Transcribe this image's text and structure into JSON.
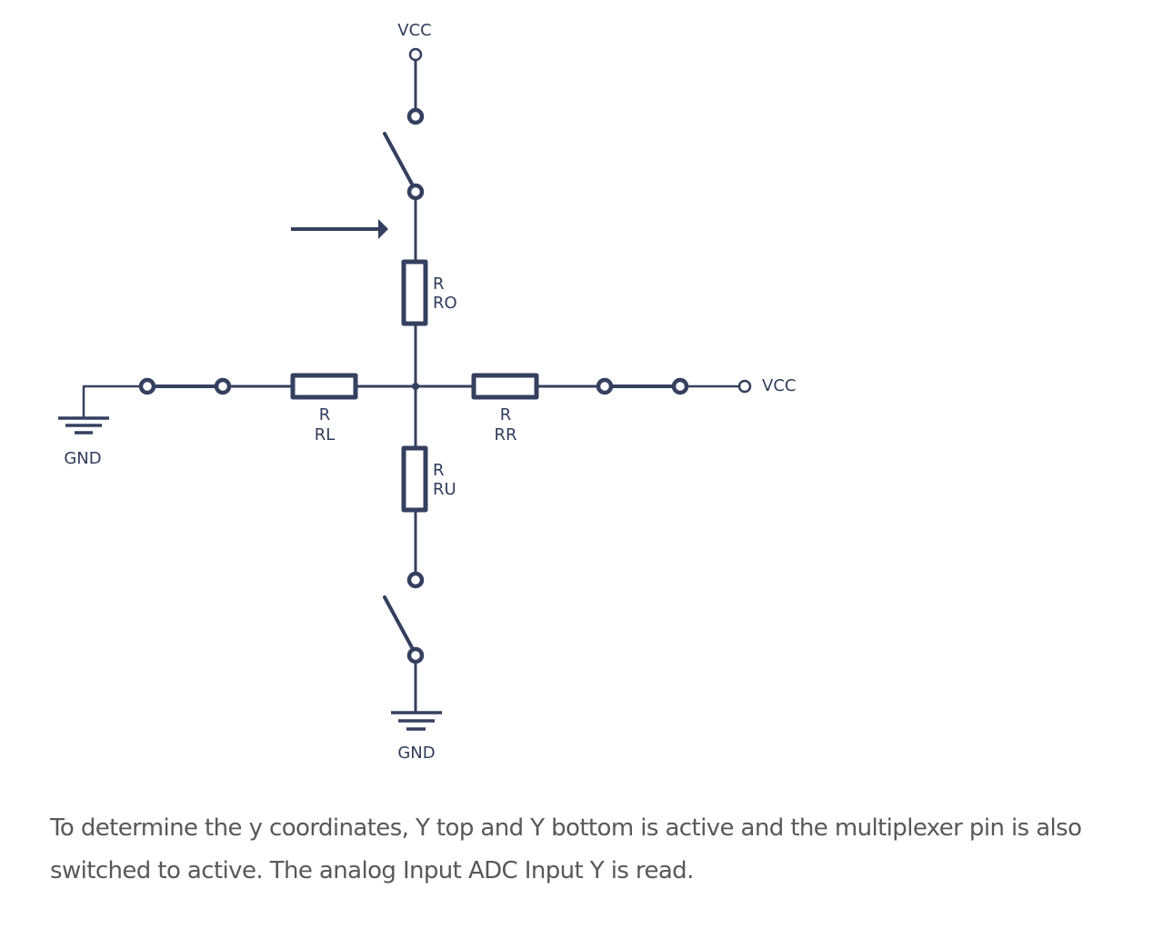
{
  "colors": {
    "wire": "#34405f",
    "text": "#585858",
    "background": "#ffffff"
  },
  "labels": {
    "vcc_top": "VCC",
    "vcc_right": "VCC",
    "gnd_left": "GND",
    "gnd_bottom": "GND"
  },
  "resistors": {
    "ro": {
      "symbol": "R",
      "name": "RO"
    },
    "ru": {
      "symbol": "R",
      "name": "RU"
    },
    "rl": {
      "symbol": "R",
      "name": "RL"
    },
    "rr": {
      "symbol": "R",
      "name": "RR"
    }
  },
  "switches": {
    "top": "open",
    "bottom": "open",
    "left": "closed",
    "right": "closed"
  },
  "icons": {
    "arrow": "arrow-right-icon",
    "ground": "ground-icon"
  },
  "caption": {
    "line1": "To determine the y coordinates, Y top and Y bottom is active and the multiplexer pin is also",
    "line2": "switched to active. The analog Input ADC Input Y is read."
  }
}
